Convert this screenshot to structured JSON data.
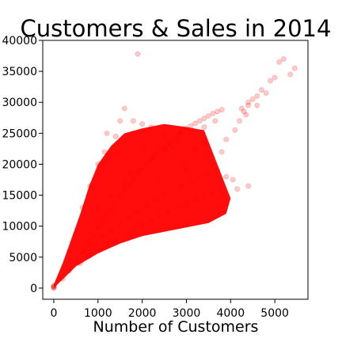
{
  "chart_data": {
    "type": "scatter",
    "title": "Customers & Sales in 2014",
    "xlabel": "Number of Customers",
    "ylabel": "",
    "xlim": [
      -250,
      5750
    ],
    "ylim": [
      -1800,
      40000
    ],
    "x_ticks": [
      0,
      1000,
      2000,
      3000,
      4000,
      5000
    ],
    "y_ticks": [
      0,
      5000,
      10000,
      15000,
      20000,
      25000,
      30000,
      35000,
      40000
    ],
    "grid": false,
    "legend": "none",
    "point_color": "#ff0000",
    "point_opacity": 0.2,
    "series": [
      {
        "x": [
          0,
          0,
          0,
          0,
          0,
          200,
          350,
          500,
          650,
          800,
          900,
          1000,
          1100,
          1200,
          1300,
          1400,
          1500,
          1600,
          1700,
          1800,
          1900,
          2000,
          2100,
          2200,
          2300,
          2400,
          2500,
          2600,
          2700,
          2800,
          2900,
          3000,
          3100,
          3200,
          3300,
          3400,
          3500,
          3600,
          3700,
          3800,
          600,
          800,
          1000,
          1200,
          1400,
          1600,
          1800,
          2000,
          2200,
          2400,
          2600,
          2800,
          3000,
          3200,
          3400,
          3600,
          700,
          900,
          1100,
          1300,
          1500,
          1700,
          1900,
          2100,
          2300,
          2500,
          2700,
          2900,
          3100,
          3300,
          3500,
          3700,
          1000,
          1300,
          1600,
          1900,
          2200,
          2500,
          2800,
          3100,
          3400,
          3650,
          3900,
          4100,
          4200,
          4300,
          4400,
          4500,
          4600,
          4700,
          4800,
          4900,
          5000,
          5100,
          5200,
          5350,
          5450,
          4250,
          4350,
          4400,
          4600,
          1900,
          1600,
          1500,
          1200,
          1150,
          1000,
          820,
          650,
          2950,
          3000,
          3900,
          4050,
          4150,
          4400,
          2500,
          2200,
          1800,
          1400,
          3200,
          3400,
          3600,
          3800,
          2000,
          2400,
          2650,
          2850,
          1250,
          1450,
          1750,
          2050
        ],
        "y": [
          0,
          100,
          200,
          300,
          400,
          1500,
          2800,
          4300,
          5800,
          7500,
          8500,
          9800,
          10800,
          11800,
          12800,
          13800,
          14800,
          15800,
          16600,
          17500,
          18500,
          19300,
          20000,
          20800,
          21500,
          22200,
          22800,
          23400,
          24000,
          24600,
          25200,
          25800,
          26200,
          26600,
          27000,
          27400,
          27800,
          28200,
          28500,
          28800,
          4000,
          5200,
          6200,
          7000,
          7800,
          8600,
          9400,
          10200,
          11000,
          11700,
          12400,
          13000,
          13600,
          14200,
          14800,
          15300,
          6000,
          7200,
          8300,
          9400,
          10400,
          11400,
          12400,
          13300,
          14200,
          15000,
          15800,
          16500,
          17200,
          17800,
          18400,
          19000,
          13000,
          15000,
          17000,
          19000,
          21000,
          22500,
          23800,
          25000,
          26000,
          27000,
          24000,
          25500,
          27000,
          28500,
          29500,
          30500,
          31000,
          32000,
          31500,
          33500,
          34000,
          36500,
          37000,
          34500,
          35500,
          29000,
          28000,
          30000,
          29500,
          37800,
          29000,
          27000,
          25000,
          22000,
          20000,
          16500,
          13000,
          20000,
          19000,
          18000,
          17500,
          16000,
          16500,
          24500,
          26000,
          27000,
          24500,
          22500,
          23500,
          20000,
          22000,
          26500,
          17000,
          23000,
          25000,
          21500,
          22000,
          18500,
          22500
        ]
      }
    ]
  }
}
